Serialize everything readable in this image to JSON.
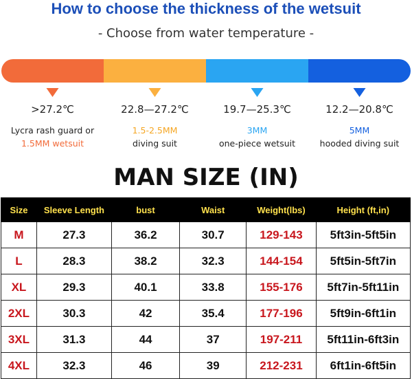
{
  "header": {
    "title": "How to choose the thickness of the wetsuit",
    "subtitle": "- Choose from water temperature -"
  },
  "bands": [
    {
      "color": "#f26b3a",
      "temperature": ">27.2℃",
      "lines": [
        {
          "text": "Lycra rash guard or",
          "color": "#222222"
        },
        {
          "text": "1.5MM wetsuit",
          "color": "#f26b3a"
        }
      ]
    },
    {
      "color": "#fbb040",
      "temperature": "22.8—27.2℃",
      "lines": [
        {
          "text": "1.5-2.5MM",
          "color": "#f5a623"
        },
        {
          "text": "diving suit",
          "color": "#222222"
        }
      ]
    },
    {
      "color": "#2aa5f2",
      "temperature": "19.7—25.3℃",
      "lines": [
        {
          "text": "3MM",
          "color": "#2aa5f2"
        },
        {
          "text": "one-piece wetsuit",
          "color": "#222222"
        }
      ]
    },
    {
      "color": "#1460df",
      "temperature": "12.2—20.8℃",
      "lines": [
        {
          "text": "5MM",
          "color": "#1460df"
        },
        {
          "text": "hooded diving suit",
          "color": "#222222"
        }
      ]
    }
  ],
  "table": {
    "title": "MAN SIZE (IN)",
    "columns": [
      "Size",
      "Sleeve Length",
      "bust",
      "Waist",
      "Weight(lbs)",
      "Height (ft,in)"
    ],
    "rows": [
      [
        "M",
        "27.3",
        "36.2",
        "30.7",
        "129-143",
        "5ft3in-5ft5in"
      ],
      [
        "L",
        "28.3",
        "38.2",
        "32.3",
        "144-154",
        "5ft5in-5ft7in"
      ],
      [
        "XL",
        "29.3",
        "40.1",
        "33.8",
        "155-176",
        "5ft7in-5ft11in"
      ],
      [
        "2XL",
        "30.3",
        "42",
        "35.4",
        "177-196",
        "5ft9in-6ft1in"
      ],
      [
        "3XL",
        "31.3",
        "44",
        "37",
        "197-211",
        "5ft11in-6ft3in"
      ],
      [
        "4XL",
        "32.3",
        "46",
        "39",
        "212-231",
        "6ft1in-6ft5in"
      ]
    ]
  }
}
